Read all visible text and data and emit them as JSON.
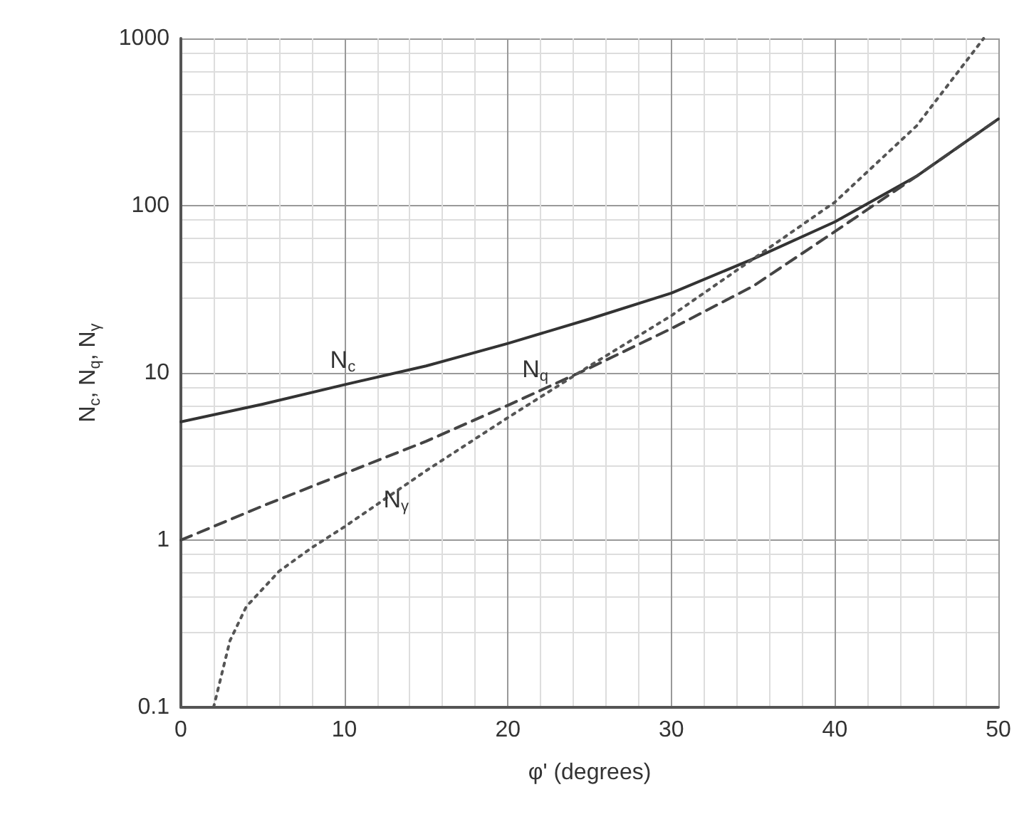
{
  "chart_data": {
    "type": "line",
    "xlabel": "φ' (degrees)",
    "ylabel": "N$_{c}$, N$_{q}$, N$_{γ}$",
    "log": "y",
    "grid": true,
    "legend": false,
    "marker": "none",
    "xlim": [
      0,
      50
    ],
    "xticks": [
      0,
      10,
      20,
      30,
      40,
      50
    ],
    "ylim": [
      0.1,
      1000
    ],
    "yticks": [
      0.1,
      1,
      10,
      100,
      1000
    ],
    "series": [
      {
        "name": "N$_{c}$",
        "color": "#333333",
        "line_style": "solid",
        "x": [
          0,
          5,
          10,
          15,
          20,
          25,
          30,
          35,
          40,
          45,
          50
        ],
        "values": [
          5.1,
          6.5,
          8.5,
          11,
          15,
          21,
          30,
          48,
          80,
          150,
          330
        ]
      },
      {
        "name": "N$_{q}$",
        "color": "#444444",
        "line_style": "dashed",
        "x": [
          0,
          5,
          10,
          15,
          20,
          25,
          30,
          35,
          40,
          45,
          50
        ],
        "values": [
          1,
          1.6,
          2.5,
          3.9,
          6.4,
          10.7,
          18.4,
          33,
          70,
          150,
          330
        ]
      },
      {
        "name": "N$_{γ}$",
        "color": "#555555",
        "line_style": "dotted",
        "x": [
          2,
          3,
          4,
          6,
          8,
          10,
          15,
          20,
          25,
          30,
          35,
          40,
          45,
          49.1
        ],
        "values": [
          0.1,
          0.25,
          0.4,
          0.65,
          0.9,
          1.2,
          2.6,
          5.4,
          11,
          22,
          48,
          105,
          300,
          1000
        ]
      }
    ]
  }
}
